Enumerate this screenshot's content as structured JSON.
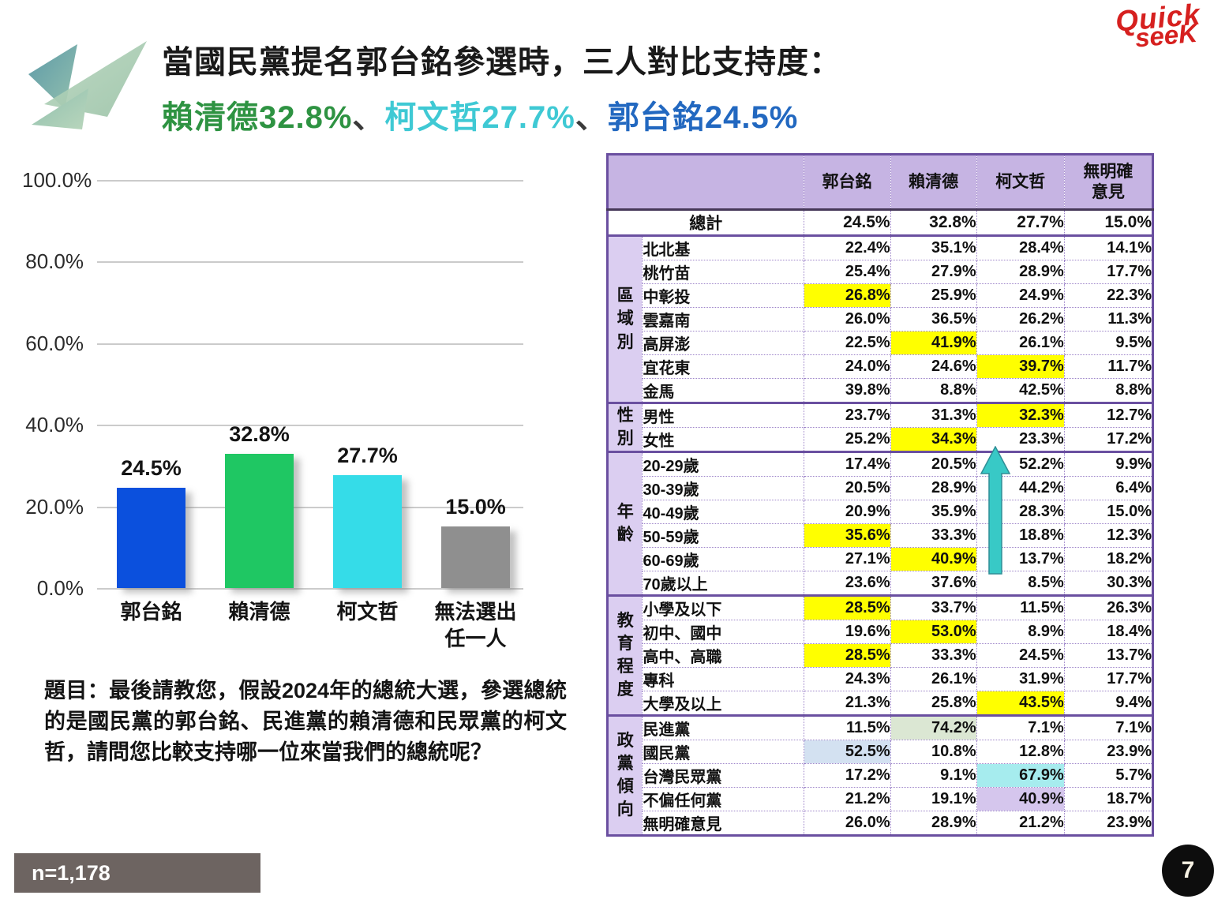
{
  "page": {
    "background": "#ffffff",
    "page_number": "7",
    "sample_size": "n=1,178"
  },
  "brand": {
    "line1": "Quick",
    "line2": "seeK",
    "color": "#d6201f"
  },
  "header": {
    "title_line1": "當國民黨提名郭台銘參選時，三人對比支持度：",
    "title_line2_segments": [
      {
        "text": "賴清德32.8%",
        "color": "#2e9342"
      },
      {
        "text": "、",
        "color": "#3a3a3a"
      },
      {
        "text": "柯文哲27.7%",
        "color": "#3fc9d4"
      },
      {
        "text": "、",
        "color": "#3a3a3a"
      },
      {
        "text": "郭台銘24.5%",
        "color": "#2268c0"
      }
    ]
  },
  "chart_data": {
    "type": "bar",
    "categories": [
      "郭台銘",
      "賴清德",
      "柯文哲",
      "無法選出任一人"
    ],
    "category_lines": [
      [
        "郭台銘"
      ],
      [
        "賴清德"
      ],
      [
        "柯文哲"
      ],
      [
        "無法選出",
        "任一人"
      ]
    ],
    "values": [
      24.5,
      32.8,
      27.7,
      15.0
    ],
    "bar_colors": [
      "#0b50dd",
      "#1fc763",
      "#35dce8",
      "#8f8f8f"
    ],
    "title": "",
    "xlabel": "",
    "ylabel": "",
    "ylim": [
      0,
      100
    ],
    "ytick_labels": [
      "100.0%",
      "80.0%",
      "60.0%",
      "40.0%",
      "20.0%",
      "0.0%"
    ],
    "grid": true,
    "legend": false
  },
  "question": {
    "text": "題目：最後請教您，假設2024年的總統大選，參選總統的是國民黨的郭台銘、民進黨的賴清德和民眾黨的柯文哲，請問您比較支持哪一位來當我們的總統呢？"
  },
  "table": {
    "columns": [
      "郭台銘",
      "賴清德",
      "柯文哲",
      "無明確意見"
    ],
    "column_lines": [
      [
        "郭台銘"
      ],
      [
        "賴清德"
      ],
      [
        "柯文哲"
      ],
      [
        "無明確",
        "意見"
      ]
    ],
    "total": {
      "label": "總計",
      "values": [
        "24.5%",
        "32.8%",
        "27.7%",
        "15.0%"
      ]
    },
    "groups": [
      {
        "name": "區域別",
        "rows": [
          {
            "label": "北北基",
            "values": [
              "22.4%",
              "35.1%",
              "28.4%",
              "14.1%"
            ],
            "highlights": [
              null,
              null,
              null,
              null
            ]
          },
          {
            "label": "桃竹苗",
            "values": [
              "25.4%",
              "27.9%",
              "28.9%",
              "17.7%"
            ],
            "highlights": [
              null,
              null,
              null,
              null
            ]
          },
          {
            "label": "中彰投",
            "values": [
              "26.8%",
              "25.9%",
              "24.9%",
              "22.3%"
            ],
            "highlights": [
              "yellow",
              null,
              null,
              null
            ]
          },
          {
            "label": "雲嘉南",
            "values": [
              "26.0%",
              "36.5%",
              "26.2%",
              "11.3%"
            ],
            "highlights": [
              null,
              null,
              null,
              null
            ]
          },
          {
            "label": "高屏澎",
            "values": [
              "22.5%",
              "41.9%",
              "26.1%",
              "9.5%"
            ],
            "highlights": [
              null,
              "yellow",
              null,
              null
            ]
          },
          {
            "label": "宜花東",
            "values": [
              "24.0%",
              "24.6%",
              "39.7%",
              "11.7%"
            ],
            "highlights": [
              null,
              null,
              "yellow",
              null
            ]
          },
          {
            "label": "金馬",
            "values": [
              "39.8%",
              "8.8%",
              "42.5%",
              "8.8%"
            ],
            "highlights": [
              null,
              null,
              null,
              null
            ]
          }
        ]
      },
      {
        "name": "性別",
        "rows": [
          {
            "label": "男性",
            "values": [
              "23.7%",
              "31.3%",
              "32.3%",
              "12.7%"
            ],
            "highlights": [
              null,
              null,
              "yellow",
              null
            ]
          },
          {
            "label": "女性",
            "values": [
              "25.2%",
              "34.3%",
              "23.3%",
              "17.2%"
            ],
            "highlights": [
              null,
              "yellow",
              null,
              null
            ]
          }
        ]
      },
      {
        "name": "年齡",
        "rows": [
          {
            "label": "20-29歲",
            "values": [
              "17.4%",
              "20.5%",
              "52.2%",
              "9.9%"
            ],
            "highlights": [
              null,
              null,
              null,
              null
            ]
          },
          {
            "label": "30-39歲",
            "values": [
              "20.5%",
              "28.9%",
              "44.2%",
              "6.4%"
            ],
            "highlights": [
              null,
              null,
              null,
              null
            ]
          },
          {
            "label": "40-49歲",
            "values": [
              "20.9%",
              "35.9%",
              "28.3%",
              "15.0%"
            ],
            "highlights": [
              null,
              null,
              null,
              null
            ]
          },
          {
            "label": "50-59歲",
            "values": [
              "35.6%",
              "33.3%",
              "18.8%",
              "12.3%"
            ],
            "highlights": [
              "yellow",
              null,
              null,
              null
            ]
          },
          {
            "label": "60-69歲",
            "values": [
              "27.1%",
              "40.9%",
              "13.7%",
              "18.2%"
            ],
            "highlights": [
              null,
              "yellow",
              null,
              null
            ]
          },
          {
            "label": "70歲以上",
            "values": [
              "23.6%",
              "37.6%",
              "8.5%",
              "30.3%"
            ],
            "highlights": [
              null,
              null,
              null,
              null
            ]
          }
        ]
      },
      {
        "name": "教育程度",
        "rows": [
          {
            "label": "小學及以下",
            "values": [
              "28.5%",
              "33.7%",
              "11.5%",
              "26.3%"
            ],
            "highlights": [
              "yellow",
              null,
              null,
              null
            ]
          },
          {
            "label": "初中、國中",
            "values": [
              "19.6%",
              "53.0%",
              "8.9%",
              "18.4%"
            ],
            "highlights": [
              null,
              "yellow",
              null,
              null
            ]
          },
          {
            "label": "高中、高職",
            "values": [
              "28.5%",
              "33.3%",
              "24.5%",
              "13.7%"
            ],
            "highlights": [
              "yellow",
              null,
              null,
              null
            ]
          },
          {
            "label": "專科",
            "values": [
              "24.3%",
              "26.1%",
              "31.9%",
              "17.7%"
            ],
            "highlights": [
              null,
              null,
              null,
              null
            ]
          },
          {
            "label": "大學及以上",
            "values": [
              "21.3%",
              "25.8%",
              "43.5%",
              "9.4%"
            ],
            "highlights": [
              null,
              null,
              "yellow",
              null
            ]
          }
        ]
      },
      {
        "name": "政黨傾向",
        "rows": [
          {
            "label": "民進黨",
            "values": [
              "11.5%",
              "74.2%",
              "7.1%",
              "7.1%"
            ],
            "highlights": [
              null,
              "green",
              null,
              null
            ]
          },
          {
            "label": "國民黨",
            "values": [
              "52.5%",
              "10.8%",
              "12.8%",
              "23.9%"
            ],
            "highlights": [
              "blue",
              null,
              null,
              null
            ]
          },
          {
            "label": "台灣民眾黨",
            "values": [
              "17.2%",
              "9.1%",
              "67.9%",
              "5.7%"
            ],
            "highlights": [
              null,
              null,
              "cyan",
              null
            ]
          },
          {
            "label": "不偏任何黨",
            "values": [
              "21.2%",
              "19.1%",
              "40.9%",
              "18.7%"
            ],
            "highlights": [
              null,
              null,
              "purple",
              null
            ]
          },
          {
            "label": "無明確意見",
            "values": [
              "26.0%",
              "28.9%",
              "21.2%",
              "23.9%"
            ],
            "highlights": [
              null,
              null,
              null,
              null
            ]
          }
        ]
      }
    ],
    "highlight_colors": {
      "yellow": "#ffff00",
      "green": "#dbe7d3",
      "blue": "#d3e1f1",
      "cyan": "#a6ecee",
      "purple": "#d5c6ed"
    },
    "trend_arrow": {
      "column": "柯文哲",
      "direction": "up",
      "color": "#38c9c6",
      "outline": "#2f8e96"
    }
  }
}
